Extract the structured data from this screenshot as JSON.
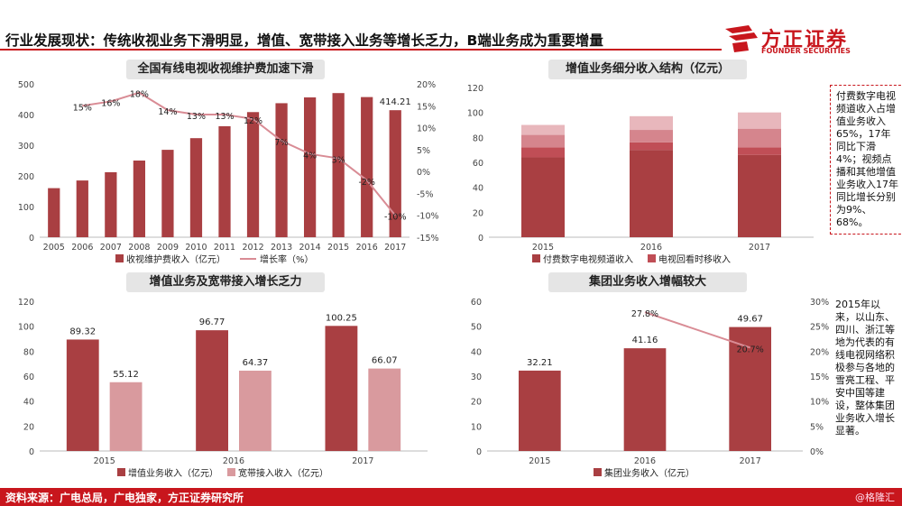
{
  "header": {
    "title": "行业发展现状：传统收视业务下滑明显，增值、宽带接入业务等增长乏力，B端业务成为重要增量",
    "logo_cn": "方正证券",
    "logo_en": "FOUNDER SECURITIES",
    "accent": "#c8161d"
  },
  "footer": {
    "source": "资料来源：广电总局，广电独家，方正证券研究所",
    "watermark": "@格隆汇"
  },
  "notes": {
    "note1": "付费数字电视频道收入占增值业务收入65%，17年同比下滑4%；视频点播和其他增值业务收入17年同比增长分别为9%、68%。",
    "note2": "2015年以来，以山东、四川、浙江等地为代表的有线电视网络积极参与各地的雪亮工程、平安中国等建设，整体集团业务收入增长显著。"
  },
  "chart_data": [
    {
      "type": "bar",
      "title": "全国有线电视收视维护费加速下滑",
      "categories": [
        "2005",
        "2006",
        "2007",
        "2008",
        "2009",
        "2010",
        "2011",
        "2012",
        "2013",
        "2014",
        "2015",
        "2016",
        "2017"
      ],
      "series": [
        {
          "name": "收视维护费收入（亿元）",
          "kind": "bar",
          "color": "#a93f42",
          "values": [
            160,
            185,
            212,
            250,
            285,
            323,
            362,
            408,
            437,
            456,
            470,
            457,
            414.21
          ]
        },
        {
          "name": "增长率（%）",
          "kind": "line",
          "axis": "right",
          "color": "#d98c95",
          "values": [
            null,
            15,
            16,
            18,
            14,
            13,
            13,
            12,
            7,
            4,
            3,
            -2,
            -10
          ],
          "labels": [
            "",
            "15%",
            "16%",
            "18%",
            "14%",
            "13%",
            "13%",
            "12%",
            "7%",
            "4%",
            "3%",
            "-2%",
            "-10%"
          ]
        }
      ],
      "last_bar_label": "414.21",
      "ylim": [
        0,
        500
      ],
      "yticks": [
        "0",
        "100",
        "200",
        "300",
        "400",
        "500"
      ],
      "y2lim": [
        -15,
        20
      ],
      "y2ticks": [
        "-15%",
        "-10%",
        "-5%",
        "0%",
        "5%",
        "10%",
        "15%",
        "20%"
      ],
      "legend": "bottom"
    },
    {
      "type": "bar",
      "stacked": true,
      "title": "增值业务细分收入结构（亿元）",
      "categories": [
        "2015",
        "2016",
        "2017"
      ],
      "series": [
        {
          "name": "付费数字电视频道收入",
          "color": "#a93f42",
          "values": [
            64,
            70,
            66
          ]
        },
        {
          "name": "电视回看时移收入",
          "color": "#c04e56",
          "values": [
            8,
            6,
            6
          ]
        },
        {
          "name": "",
          "color": "#d5858d",
          "values": [
            10,
            10,
            15
          ]
        },
        {
          "name": "",
          "color": "#e8b7bc",
          "values": [
            8,
            11,
            13
          ]
        }
      ],
      "ylim": [
        0,
        120
      ],
      "yticks": [
        "0",
        "20",
        "40",
        "60",
        "80",
        "100",
        "120"
      ],
      "legend": "bottom"
    },
    {
      "type": "bar",
      "title": "增值业务及宽带接入增长乏力",
      "categories": [
        "2015",
        "2016",
        "2017"
      ],
      "series": [
        {
          "name": "增值业务收入（亿元）",
          "color": "#a93f42",
          "values": [
            89.32,
            96.77,
            100.25
          ],
          "labels": [
            "89.32",
            "96.77",
            "100.25"
          ]
        },
        {
          "name": "宽带接入收入（亿元）",
          "color": "#d99a9e",
          "values": [
            55.12,
            64.37,
            66.07
          ],
          "labels": [
            "55.12",
            "64.37",
            "66.07"
          ]
        }
      ],
      "ylim": [
        0,
        120
      ],
      "yticks": [
        "0",
        "20",
        "40",
        "60",
        "80",
        "100",
        "120"
      ],
      "legend": "bottom"
    },
    {
      "type": "bar",
      "title": "集团业务收入增幅较大",
      "categories": [
        "2015",
        "2016",
        "2017"
      ],
      "series": [
        {
          "name": "集团业务收入（亿元）",
          "kind": "bar",
          "color": "#a93f42",
          "values": [
            32.21,
            41.16,
            49.67
          ],
          "labels": [
            "32.21",
            "41.16",
            "49.67"
          ]
        },
        {
          "name": "",
          "kind": "line",
          "axis": "right",
          "color": "#d98c95",
          "values": [
            null,
            27.8,
            20.7
          ],
          "labels": [
            "",
            "27.8%",
            "20.7%"
          ]
        }
      ],
      "ylim": [
        0,
        60
      ],
      "yticks": [
        "0",
        "10",
        "20",
        "30",
        "40",
        "50",
        "60"
      ],
      "y2lim": [
        0,
        30
      ],
      "y2ticks": [
        "0%",
        "5%",
        "10%",
        "15%",
        "20%",
        "25%",
        "30%"
      ],
      "legend": "bottom"
    }
  ]
}
